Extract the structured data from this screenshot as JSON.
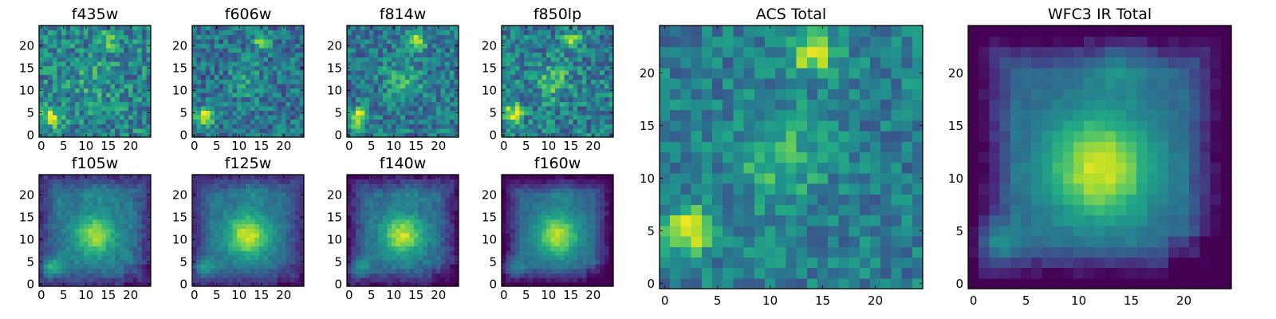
{
  "figure": {
    "colormap": "viridis",
    "colormap_stops": [
      "#440154",
      "#482475",
      "#414487",
      "#355f8d",
      "#2a788e",
      "#21918c",
      "#22a884",
      "#44bf70",
      "#7ad151",
      "#bddf26",
      "#fde725"
    ]
  },
  "chart_data": [
    {
      "type": "heatmap",
      "title": "f435w",
      "grid": false,
      "xlim": [
        0,
        24
      ],
      "ylim": [
        0,
        24
      ],
      "xticks": [
        "0",
        "5",
        "10",
        "15",
        "20"
      ],
      "yticks": [
        "0",
        "5",
        "10",
        "15",
        "20"
      ],
      "noise": 0.22,
      "sources": [
        {
          "x": 2,
          "y": 4,
          "amplitude": 0.55,
          "sigma": 1.4
        },
        {
          "x": 15,
          "y": 21,
          "amplitude": 0.35,
          "sigma": 1.3
        },
        {
          "x": 12,
          "y": 12,
          "amplitude": 0.15,
          "sigma": 3
        }
      ],
      "background": 0.45,
      "darkening": 0.0
    },
    {
      "type": "heatmap",
      "title": "f606w",
      "grid": false,
      "xlim": [
        0,
        24
      ],
      "ylim": [
        0,
        24
      ],
      "xticks": [
        "0",
        "5",
        "10",
        "15",
        "20"
      ],
      "yticks": [
        "0",
        "5",
        "10",
        "15",
        "20"
      ],
      "noise": 0.2,
      "sources": [
        {
          "x": 2,
          "y": 4,
          "amplitude": 0.6,
          "sigma": 1.4
        },
        {
          "x": 15,
          "y": 21,
          "amplitude": 0.45,
          "sigma": 1.3
        },
        {
          "x": 12,
          "y": 12,
          "amplitude": 0.15,
          "sigma": 3
        }
      ],
      "background": 0.38,
      "darkening": 0.0
    },
    {
      "type": "heatmap",
      "title": "f814w",
      "grid": false,
      "xlim": [
        0,
        24
      ],
      "ylim": [
        0,
        24
      ],
      "xticks": [
        "0",
        "5",
        "10",
        "15",
        "20"
      ],
      "yticks": [
        "0",
        "5",
        "10",
        "15",
        "20"
      ],
      "noise": 0.2,
      "sources": [
        {
          "x": 2,
          "y": 4,
          "amplitude": 0.6,
          "sigma": 1.4
        },
        {
          "x": 15,
          "y": 21,
          "amplitude": 0.45,
          "sigma": 1.4
        },
        {
          "x": 12,
          "y": 12,
          "amplitude": 0.22,
          "sigma": 3
        }
      ],
      "background": 0.4,
      "darkening": 0.0
    },
    {
      "type": "heatmap",
      "title": "f850lp",
      "grid": false,
      "xlim": [
        0,
        24
      ],
      "ylim": [
        0,
        24
      ],
      "xticks": [
        "0",
        "5",
        "10",
        "15",
        "20"
      ],
      "yticks": [
        "0",
        "5",
        "10",
        "15",
        "20"
      ],
      "noise": 0.22,
      "sources": [
        {
          "x": 2,
          "y": 5,
          "amplitude": 0.55,
          "sigma": 1.4
        },
        {
          "x": 15,
          "y": 21,
          "amplitude": 0.45,
          "sigma": 1.4
        },
        {
          "x": 11,
          "y": 12,
          "amplitude": 0.3,
          "sigma": 2.5
        }
      ],
      "background": 0.42,
      "darkening": 0.0
    },
    {
      "type": "heatmap",
      "title": "f105w",
      "grid": false,
      "xlim": [
        0,
        24
      ],
      "ylim": [
        0,
        24
      ],
      "xticks": [
        "0",
        "5",
        "10",
        "15",
        "20"
      ],
      "yticks": [
        "0",
        "5",
        "10",
        "15",
        "20"
      ],
      "noise": 0.07,
      "sources": [
        {
          "x": 12,
          "y": 11,
          "amplitude": 0.45,
          "sigma": 3.2
        },
        {
          "x": 2,
          "y": 4,
          "amplitude": 0.35,
          "sigma": 1.5
        },
        {
          "x": 13,
          "y": 21,
          "amplitude": 0.12,
          "sigma": 2
        }
      ],
      "background": 0.4,
      "darkening": 0.25
    },
    {
      "type": "heatmap",
      "title": "f125w",
      "grid": false,
      "xlim": [
        0,
        24
      ],
      "ylim": [
        0,
        24
      ],
      "xticks": [
        "0",
        "5",
        "10",
        "15",
        "20"
      ],
      "yticks": [
        "0",
        "5",
        "10",
        "15",
        "20"
      ],
      "noise": 0.06,
      "sources": [
        {
          "x": 12,
          "y": 11,
          "amplitude": 0.55,
          "sigma": 3.3
        },
        {
          "x": 2,
          "y": 4,
          "amplitude": 0.3,
          "sigma": 1.5
        },
        {
          "x": 13,
          "y": 21,
          "amplitude": 0.12,
          "sigma": 2
        }
      ],
      "background": 0.38,
      "darkening": 0.25
    },
    {
      "type": "heatmap",
      "title": "f140w",
      "grid": false,
      "xlim": [
        0,
        24
      ],
      "ylim": [
        0,
        24
      ],
      "xticks": [
        "0",
        "5",
        "10",
        "15",
        "20"
      ],
      "yticks": [
        "0",
        "5",
        "10",
        "15",
        "20"
      ],
      "noise": 0.07,
      "sources": [
        {
          "x": 12,
          "y": 11,
          "amplitude": 0.55,
          "sigma": 3.2
        },
        {
          "x": 2,
          "y": 4,
          "amplitude": 0.3,
          "sigma": 1.5
        },
        {
          "x": 13,
          "y": 21,
          "amplitude": 0.12,
          "sigma": 2
        }
      ],
      "background": 0.36,
      "darkening": 0.3
    },
    {
      "type": "heatmap",
      "title": "f160w",
      "grid": false,
      "xlim": [
        0,
        24
      ],
      "ylim": [
        0,
        24
      ],
      "xticks": [
        "0",
        "5",
        "10",
        "15",
        "20"
      ],
      "yticks": [
        "0",
        "5",
        "10",
        "15",
        "20"
      ],
      "noise": 0.05,
      "sources": [
        {
          "x": 12,
          "y": 11,
          "amplitude": 0.55,
          "sigma": 3.4
        },
        {
          "x": 2,
          "y": 4,
          "amplitude": 0.25,
          "sigma": 1.5
        },
        {
          "x": 13,
          "y": 21,
          "amplitude": 0.12,
          "sigma": 2
        }
      ],
      "background": 0.34,
      "darkening": 0.35
    },
    {
      "type": "heatmap",
      "title": "ACS Total",
      "grid": false,
      "xlim": [
        0,
        24
      ],
      "ylim": [
        0,
        24
      ],
      "xticks": [
        "0",
        "5",
        "10",
        "15",
        "20"
      ],
      "yticks": [
        "0",
        "5",
        "10",
        "15",
        "20"
      ],
      "noise": 0.16,
      "sources": [
        {
          "x": 2,
          "y": 5,
          "amplitude": 0.55,
          "sigma": 1.6
        },
        {
          "x": 14,
          "y": 22,
          "amplitude": 0.5,
          "sigma": 1.5
        },
        {
          "x": 11,
          "y": 12,
          "amplitude": 0.25,
          "sigma": 3
        },
        {
          "x": 9,
          "y": 3,
          "amplitude": 0.15,
          "sigma": 1.5
        }
      ],
      "background": 0.42,
      "darkening": 0.0
    },
    {
      "type": "heatmap",
      "title": "WFC3 IR Total",
      "grid": false,
      "xlim": [
        0,
        24
      ],
      "ylim": [
        0,
        24
      ],
      "xticks": [
        "0",
        "5",
        "10",
        "15",
        "20"
      ],
      "yticks": [
        "0",
        "5",
        "10",
        "15",
        "20"
      ],
      "noise": 0.04,
      "sources": [
        {
          "x": 12,
          "y": 11,
          "amplitude": 0.6,
          "sigma": 3.6
        },
        {
          "x": 2,
          "y": 4,
          "amplitude": 0.3,
          "sigma": 1.5
        },
        {
          "x": 14,
          "y": 21,
          "amplitude": 0.15,
          "sigma": 2
        }
      ],
      "background": 0.34,
      "darkening": 0.4
    }
  ]
}
